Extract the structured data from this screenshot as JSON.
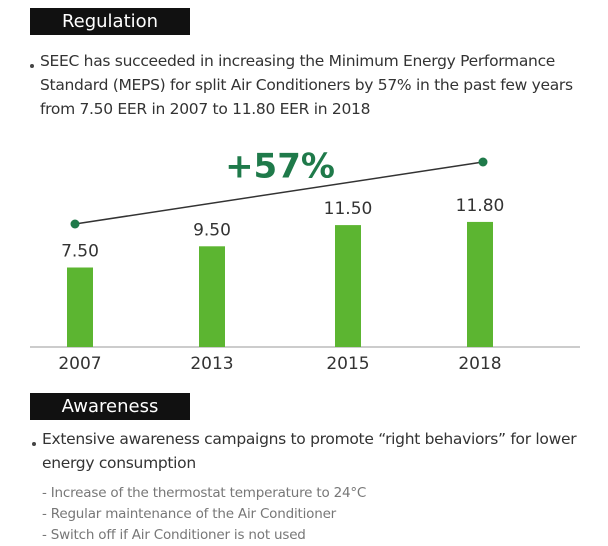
{
  "regulation": {
    "heading": "Regulation",
    "lines": [
      "SEEC has succeeded in increasing the Minimum Energy Performance",
      "Standard (MEPS) for split Air Conditioners by 57% in the past few years",
      "from 7.50 EER in 2007 to 11.80 EER in 2018"
    ]
  },
  "chart_data": {
    "type": "bar",
    "annotation": "+57%",
    "categories": [
      "2007",
      "2013",
      "2015",
      "2018"
    ],
    "values": [
      7.5,
      9.5,
      11.5,
      11.8
    ],
    "value_labels": [
      "7.50",
      "9.50",
      "11.50",
      "11.80"
    ],
    "color": "#5cb531"
  },
  "awareness": {
    "heading": "Awareness",
    "lines": [
      "Extensive awareness campaigns to promote “right behaviors” for lower",
      "energy consumption"
    ],
    "items": [
      "- Increase of the thermostat temperature to 24°C",
      "- Regular maintenance of the Air Conditioner",
      "- Switch off if Air Conditioner is not used"
    ]
  }
}
